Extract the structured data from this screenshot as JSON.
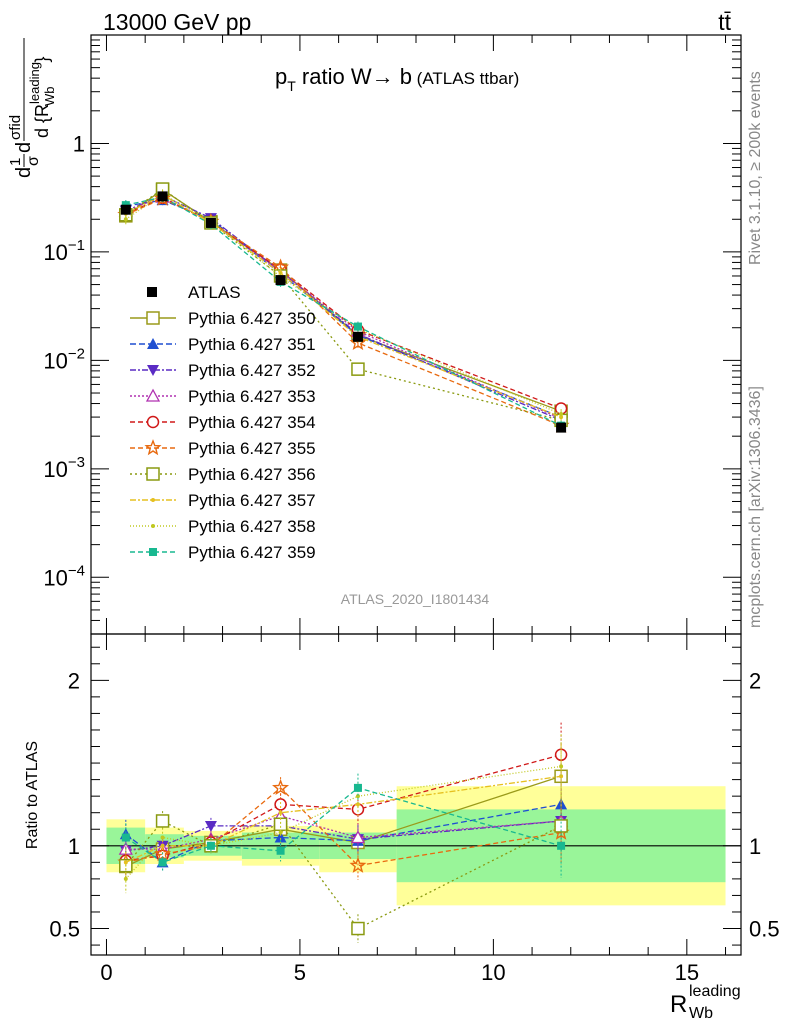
{
  "header": {
    "energy_label": "13000 GeV pp",
    "process_label": "tt̄"
  },
  "chart_data": [
    {
      "type": "line",
      "panel": "main",
      "title_parts": [
        "p",
        "T",
        " ratio W→ b",
        " (ATLAS ttbar)"
      ],
      "ylabel_parts": [
        "d",
        "1",
        "σ",
        "d",
        "σ",
        "fid",
        "d {R",
        "leading",
        "Wb",
        "}"
      ],
      "yscale": "log",
      "ylim": [
        3e-05,
        10
      ],
      "xlim": [
        -0.4,
        16.4
      ],
      "y_tick_labels": [
        {
          "value": 1,
          "base": "1",
          "exp": ""
        },
        {
          "value": 0.1,
          "base": "10",
          "exp": "−1"
        },
        {
          "value": 0.01,
          "base": "10",
          "exp": "−2"
        },
        {
          "value": 0.001,
          "base": "10",
          "exp": "−3"
        },
        {
          "value": 0.0001,
          "base": "10",
          "exp": "−4"
        }
      ],
      "watermark": "ATLAS_2020_I1801434",
      "legend_position": "middle-left",
      "x": [
        0.5,
        1.45,
        2.7,
        4.5,
        6.5,
        11.75
      ],
      "data": {
        "name": "ATLAS",
        "bins": [
          [
            0,
            1
          ],
          [
            1,
            2
          ],
          [
            2,
            3.5
          ],
          [
            3.5,
            5.5
          ],
          [
            5.5,
            7.5
          ],
          [
            7.5,
            16
          ]
        ],
        "values": [
          0.245,
          0.325,
          0.185,
          0.055,
          0.0165,
          0.0024
        ],
        "ratio_band_stat": [
          0.11,
          0.07,
          0.06,
          0.08,
          0.08,
          0.22
        ],
        "ratio_band_total": [
          0.16,
          0.11,
          0.09,
          0.12,
          0.16,
          0.36
        ]
      },
      "series": [
        {
          "name": "Pythia 6.427 350",
          "color": "#9a9a1a",
          "marker": "square-open",
          "dash": "solid",
          "values": [
            0.215,
            0.375,
            0.19,
            0.068,
            0.017,
            0.0034
          ],
          "ratio": [
            0.875,
            0.98,
            1.02,
            1.1,
            1.02,
            1.42
          ]
        },
        {
          "name": "Pythia 6.427 351",
          "color": "#1f4fd1",
          "marker": "triangle-up-filled",
          "dash": "6,3",
          "values": [
            0.265,
            0.3,
            0.2,
            0.063,
            0.017,
            0.003
          ],
          "ratio": [
            1.07,
            0.9,
            1.03,
            1.05,
            1.03,
            1.25
          ]
        },
        {
          "name": "Pythia 6.427 352",
          "color": "#5a2bc4",
          "marker": "triangle-down-filled",
          "dash": "6,2,2,2",
          "values": [
            0.24,
            0.33,
            0.205,
            0.066,
            0.0175,
            0.0028
          ],
          "ratio": [
            0.97,
            1.0,
            1.12,
            1.12,
            1.04,
            1.15
          ]
        },
        {
          "name": "Pythia 6.427 353",
          "color": "#b030b0",
          "marker": "triangle-up-open",
          "dash": "2,2",
          "values": [
            0.24,
            0.32,
            0.19,
            0.066,
            0.0185,
            0.0029
          ],
          "ratio": [
            0.98,
            0.98,
            1.04,
            1.18,
            1.05,
            1.15
          ]
        },
        {
          "name": "Pythia 6.427 354",
          "color": "#d01818",
          "marker": "circle-open",
          "dash": "5,3",
          "values": [
            0.225,
            0.315,
            0.19,
            0.069,
            0.019,
            0.0036
          ],
          "ratio": [
            0.91,
            0.94,
            1.02,
            1.25,
            1.22,
            1.55
          ]
        },
        {
          "name": "Pythia 6.427 355",
          "color": "#e86a10",
          "marker": "star-open",
          "dash": "5,3",
          "values": [
            0.22,
            0.31,
            0.19,
            0.072,
            0.0145,
            0.0025
          ],
          "ratio": [
            0.9,
            0.95,
            1.0,
            1.35,
            0.88,
            1.08
          ]
        },
        {
          "name": "Pythia 6.427 356",
          "color": "#8a9a10",
          "marker": "square-open",
          "dash": "2,3",
          "values": [
            0.22,
            0.38,
            0.185,
            0.06,
            0.0083,
            0.0028
          ],
          "ratio": [
            0.88,
            1.15,
            1.0,
            1.13,
            0.5,
            1.12
          ]
        },
        {
          "name": "Pythia 6.427 357",
          "color": "#e6c020",
          "marker": "small-dot",
          "dash": "6,2,2,2",
          "values": [
            0.225,
            0.335,
            0.185,
            0.064,
            0.0165,
            0.003
          ],
          "ratio": [
            0.9,
            1.0,
            1.0,
            1.2,
            1.25,
            1.42
          ]
        },
        {
          "name": "Pythia 6.427 358",
          "color": "#c0c820",
          "marker": "small-dot",
          "dash": "1,2",
          "values": [
            0.2,
            0.34,
            0.195,
            0.059,
            0.0195,
            0.0032
          ],
          "ratio": [
            0.8,
            1.05,
            1.0,
            1.08,
            1.3,
            1.48
          ]
        },
        {
          "name": "Pythia 6.427 359",
          "color": "#18b890",
          "marker": "square-filled",
          "dash": "5,3",
          "values": [
            0.27,
            0.32,
            0.18,
            0.053,
            0.0205,
            0.0025
          ],
          "ratio": [
            1.05,
            0.9,
            1.0,
            0.97,
            1.35,
            1.0
          ]
        }
      ]
    },
    {
      "type": "line",
      "panel": "ratio",
      "ylabel": "Ratio to ATLAS",
      "ylim": [
        0.34,
        2.28
      ],
      "y_ticks": [
        0.5,
        1,
        2
      ],
      "y_tick_labels": [
        "0.5",
        "1",
        "2"
      ],
      "xlabel_parts": [
        "R",
        "leading",
        "Wb"
      ],
      "x_ticks": [
        0,
        5,
        10,
        15
      ],
      "x_tick_labels": [
        "0",
        "5",
        "10",
        "15"
      ]
    }
  ],
  "side_labels": {
    "rivet": "Rivet 3.1.10, ≥ 200k events",
    "source": "mcplots.cern.ch [arXiv:1306.3436]"
  }
}
